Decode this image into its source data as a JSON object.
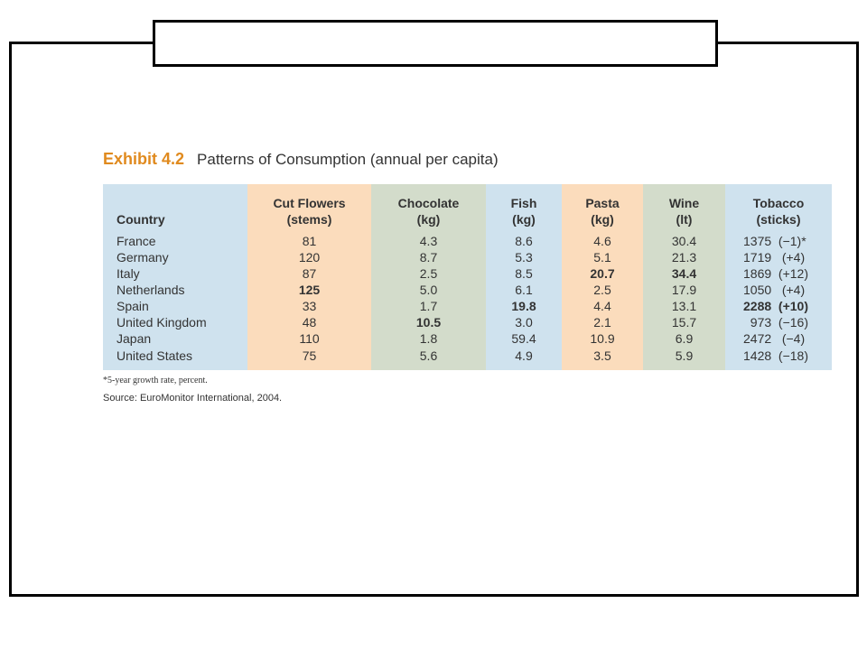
{
  "exhibit": {
    "number": "Exhibit 4.2",
    "title": "Patterns of Consumption (annual per capita)"
  },
  "table": {
    "headers": [
      {
        "line1": "",
        "line2": "Country"
      },
      {
        "line1": "Cut Flowers",
        "line2": "(stems)"
      },
      {
        "line1": "Chocolate",
        "line2": "(kg)"
      },
      {
        "line1": "Fish",
        "line2": "(kg)"
      },
      {
        "line1": "Pasta",
        "line2": "(kg)"
      },
      {
        "line1": "Wine",
        "line2": "(lt)"
      },
      {
        "line1": "Tobacco",
        "line2": "(sticks)"
      }
    ],
    "rows": [
      [
        "France",
        "81",
        "4.3",
        "8.6",
        "4.6",
        "30.4",
        "1375  (−1)*"
      ],
      [
        "Germany",
        "120",
        "8.7",
        "5.3",
        "5.1",
        "21.3",
        "1719   (+4)"
      ],
      [
        "Italy",
        "87",
        "2.5",
        "8.5",
        "20.7",
        "34.4",
        "1869  (+12)"
      ],
      [
        "Netherlands",
        "125",
        "5.0",
        "6.1",
        "2.5",
        "17.9",
        "1050   (+4)"
      ],
      [
        "Spain",
        "33",
        "1.7",
        "19.8",
        "4.4",
        "13.1",
        "2288  (+10)"
      ],
      [
        "United Kingdom",
        "48",
        "10.5",
        "3.0",
        "2.1",
        "15.7",
        "  973  (−16)"
      ],
      [
        "Japan",
        "110",
        "1.8",
        "59.4",
        "10.9",
        "6.9",
        "2472   (−4)"
      ],
      [
        "United States",
        "75",
        "5.6",
        "4.9",
        "3.5",
        "5.9",
        "1428  (−18)"
      ]
    ]
  },
  "footnote": "*5-year growth rate, percent.",
  "source": "Source: EuroMonitor International, 2004."
}
